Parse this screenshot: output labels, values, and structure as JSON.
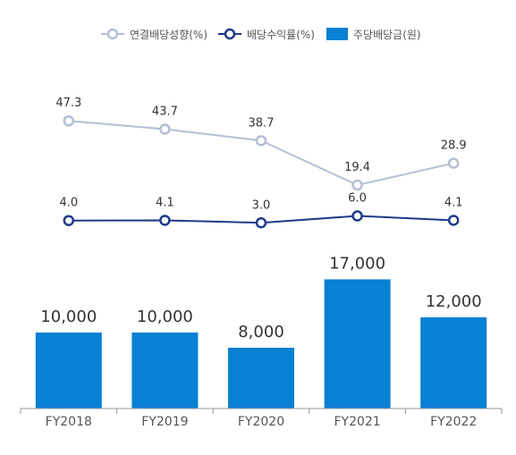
{
  "chart_data": {
    "type": "bar",
    "categories": [
      "FY2018",
      "FY2019",
      "FY2020",
      "FY2021",
      "FY2022"
    ],
    "legend_placement": "top-center",
    "grid": false,
    "series": [
      {
        "name": "연결배당성향(%)",
        "type": "line",
        "color": "#b3bfd4",
        "values": [
          47.3,
          43.7,
          38.7,
          19.4,
          28.9
        ],
        "labels": [
          "47.3",
          "43.7",
          "38.7",
          "19.4",
          "28.9"
        ],
        "ylim": [
          0,
          80
        ]
      },
      {
        "name": "배당수익률(%)",
        "type": "line",
        "color": "#1f3a8a",
        "values": [
          4.0,
          4.1,
          3.0,
          6.0,
          4.1
        ],
        "labels": [
          "4.0",
          "4.1",
          "3.0",
          "6.0",
          "4.1"
        ],
        "ylim": [
          0,
          80
        ]
      },
      {
        "name": "주당배당금(원)",
        "type": "bar",
        "color": "#0880d4",
        "values": [
          10000,
          10000,
          8000,
          17000,
          12000
        ],
        "labels": [
          "10,000",
          "10,000",
          "8,000",
          "17,000",
          "12,000"
        ],
        "ylim": [
          0,
          20000
        ]
      }
    ]
  }
}
